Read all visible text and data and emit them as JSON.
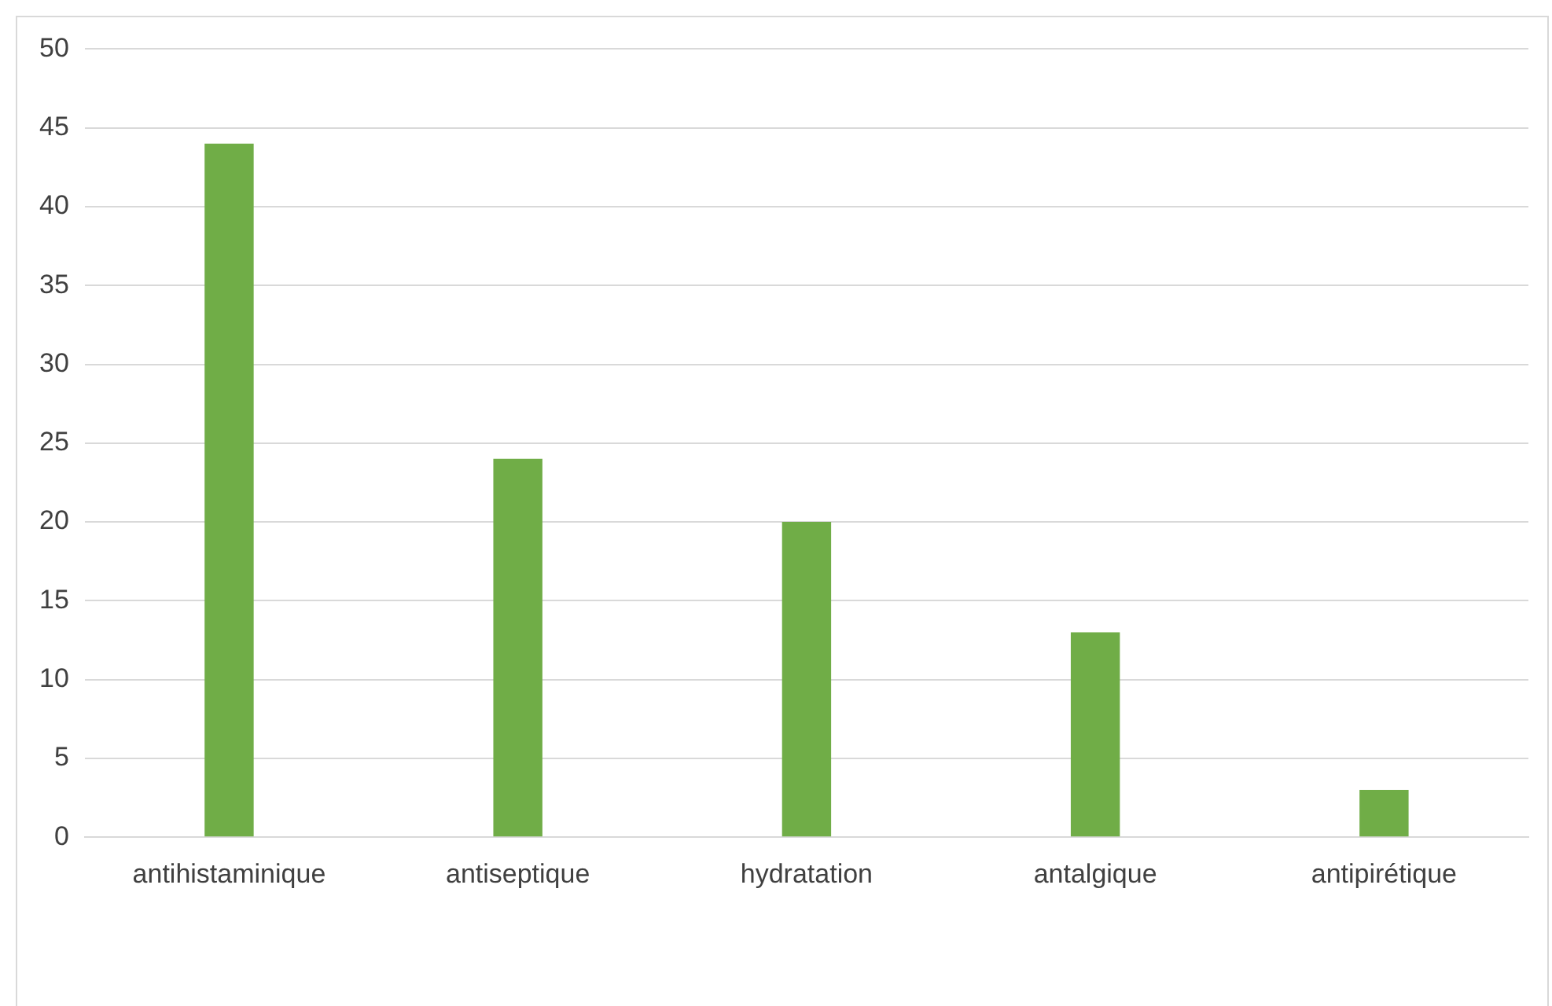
{
  "chart_data": {
    "type": "bar",
    "categories": [
      "antihistaminique",
      "antiseptique",
      "hydratation",
      "antalgique",
      "antipirétique"
    ],
    "values": [
      44,
      24,
      20,
      13,
      3
    ],
    "color": "#70ad47",
    "ylim": [
      0,
      50
    ],
    "yticks": [
      0,
      5,
      10,
      15,
      20,
      25,
      30,
      35,
      40,
      45,
      50
    ],
    "grid": "y"
  }
}
